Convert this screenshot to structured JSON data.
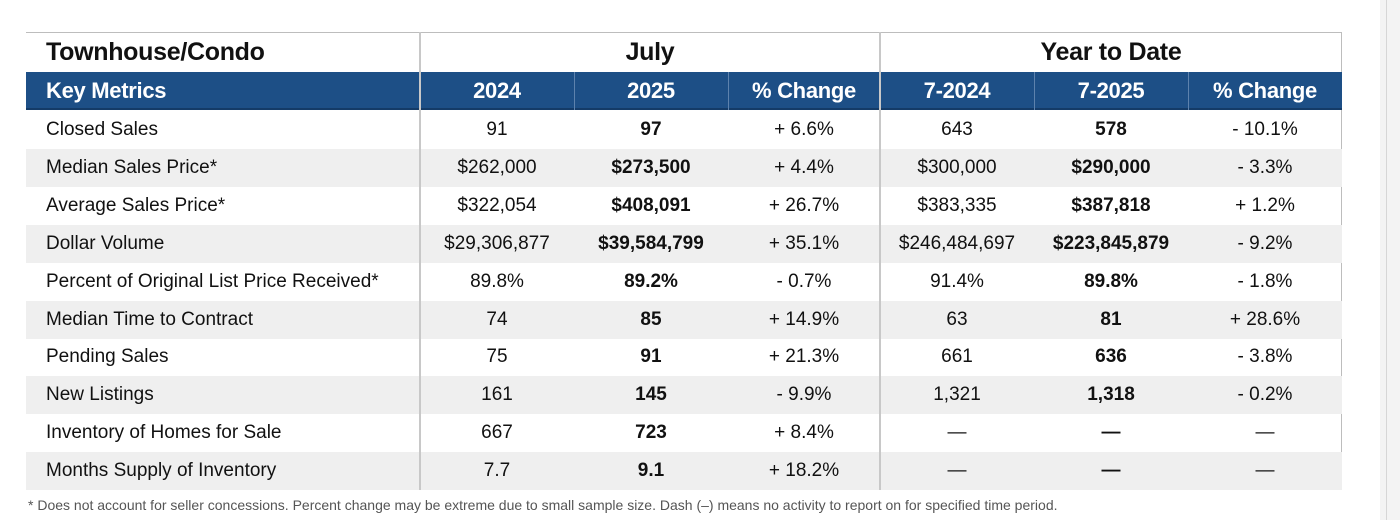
{
  "table": {
    "title": "Townhouse/Condo",
    "group_july": "July",
    "group_ytd": "Year to Date",
    "headers": [
      "Key Metrics",
      "2024",
      "2025",
      "% Change",
      "7-2024",
      "7-2025",
      "% Change"
    ],
    "rows": [
      [
        "Closed Sales",
        "91",
        "97",
        "+ 6.6%",
        "643",
        "578",
        "- 10.1%"
      ],
      [
        "Median Sales Price*",
        "$262,000",
        "$273,500",
        "+ 4.4%",
        "$300,000",
        "$290,000",
        "- 3.3%"
      ],
      [
        "Average Sales Price*",
        "$322,054",
        "$408,091",
        "+ 26.7%",
        "$383,335",
        "$387,818",
        "+ 1.2%"
      ],
      [
        "Dollar Volume",
        "$29,306,877",
        "$39,584,799",
        "+ 35.1%",
        "$246,484,697",
        "$223,845,879",
        "- 9.2%"
      ],
      [
        "Percent of Original List Price Received*",
        "89.8%",
        "89.2%",
        "- 0.7%",
        "91.4%",
        "89.8%",
        "- 1.8%"
      ],
      [
        "Median Time to Contract",
        "74",
        "85",
        "+ 14.9%",
        "63",
        "81",
        "+ 28.6%"
      ],
      [
        "Pending Sales",
        "75",
        "91",
        "+ 21.3%",
        "661",
        "636",
        "- 3.8%"
      ],
      [
        "New Listings",
        "161",
        "145",
        "- 9.9%",
        "1,321",
        "1,318",
        "- 0.2%"
      ],
      [
        "Inventory of Homes for Sale",
        "667",
        "723",
        "+ 8.4%",
        "—",
        "—",
        "—"
      ],
      [
        "Months Supply of Inventory",
        "7.7",
        "9.1",
        "+ 18.2%",
        "—",
        "—",
        "—"
      ]
    ],
    "footnote": "* Does not account for seller concessions. Percent change may be extreme due to small sample size. Dash (–) means no activity to report on for specified time period."
  },
  "colors": {
    "header_bg": "#1d4f86",
    "alt_row_bg": "#efefef",
    "border": "#bdbdbd"
  }
}
